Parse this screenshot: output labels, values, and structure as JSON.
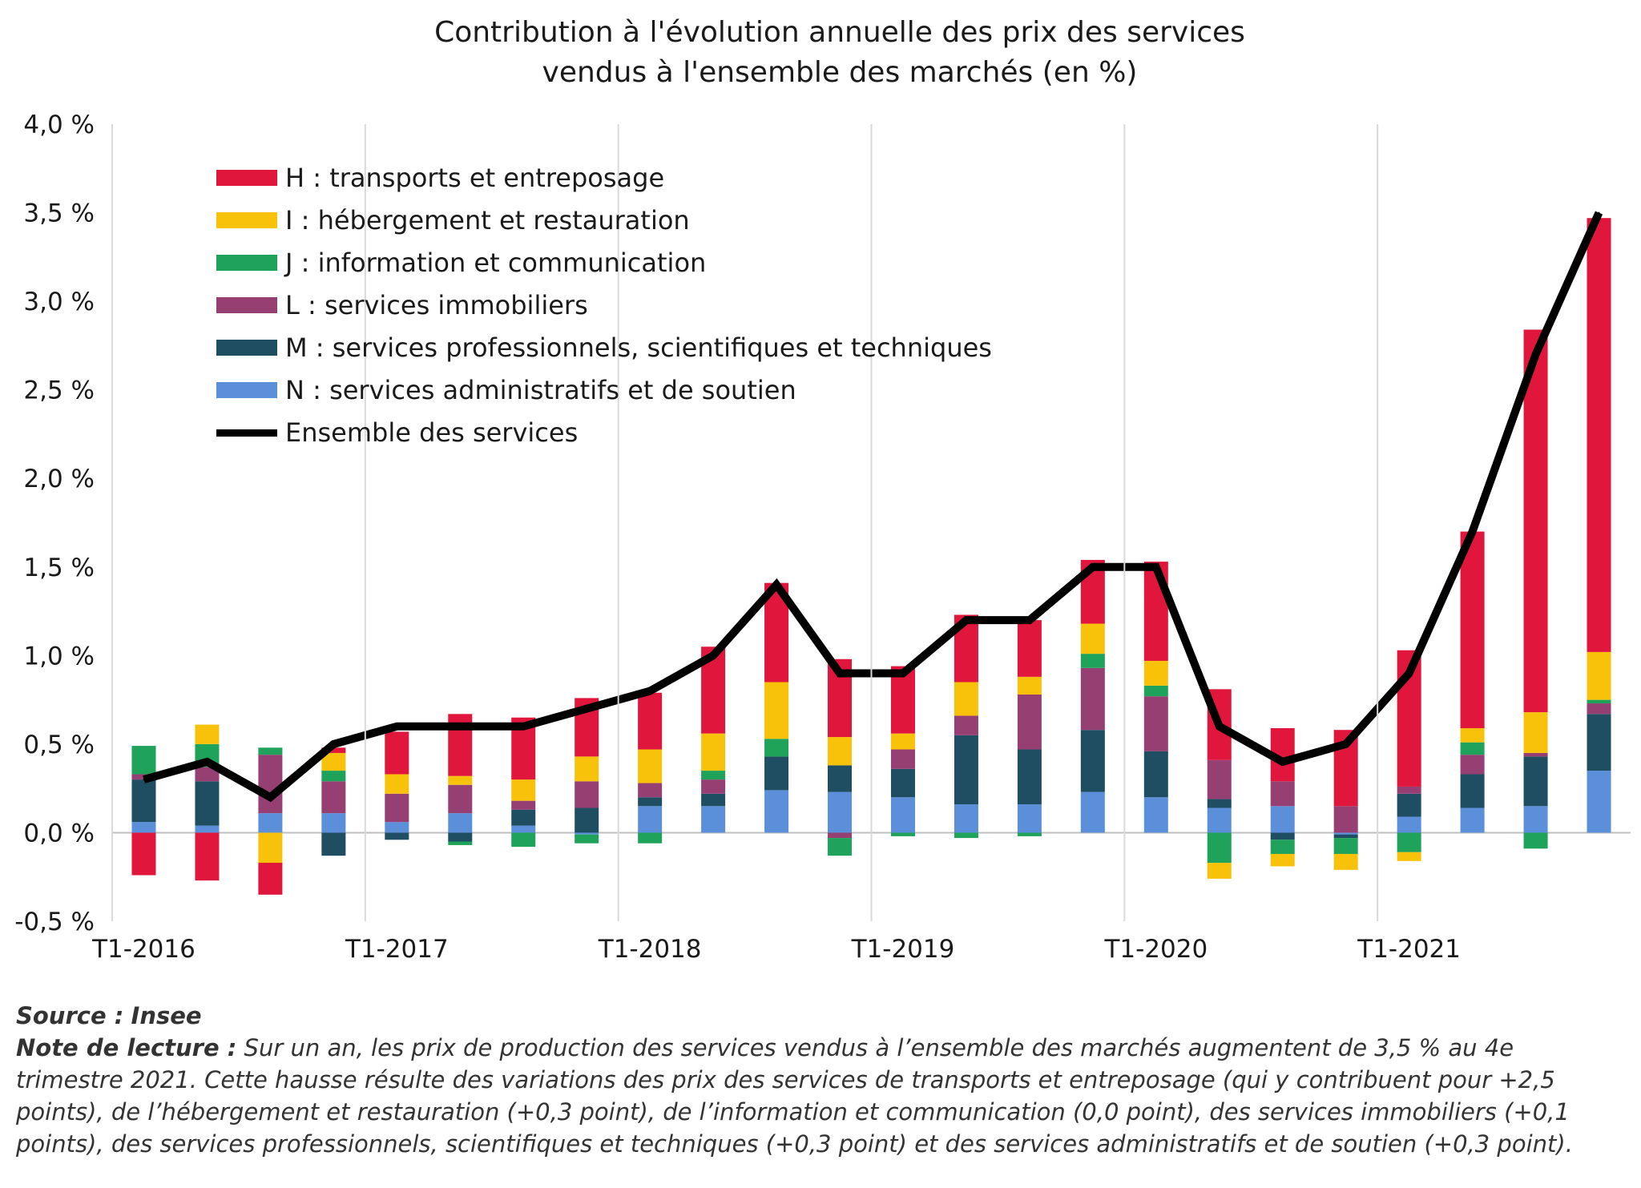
{
  "chart_data": {
    "type": "bar",
    "stacked": true,
    "title": "Contribution à l'évolution annuelle des prix des services\nvendus à l'ensemble des marchés (en %)",
    "title_lines": [
      "Contribution à l'évolution annuelle des prix des services",
      "vendus à l'ensemble des marchés (en %)"
    ],
    "ylim": [
      -0.5,
      4.0
    ],
    "yticks": [
      -0.5,
      0.0,
      0.5,
      1.0,
      1.5,
      2.0,
      2.5,
      3.0,
      3.5,
      4.0
    ],
    "ytick_labels": [
      "-0,5 %",
      "0,0 %",
      "0,5 %",
      "1,0 %",
      "1,5 %",
      "2,0 %",
      "2,5 %",
      "3,0 %",
      "3,5 %",
      "4,0 %"
    ],
    "categories": [
      "T1-2016",
      "T2-2016",
      "T3-2016",
      "T4-2016",
      "T1-2017",
      "T2-2017",
      "T3-2017",
      "T4-2017",
      "T1-2018",
      "T2-2018",
      "T3-2018",
      "T4-2018",
      "T1-2019",
      "T2-2019",
      "T3-2019",
      "T4-2019",
      "T1-2020",
      "T2-2020",
      "T3-2020",
      "T4-2020",
      "T1-2021",
      "T2-2021",
      "T3-2021",
      "T4-2021"
    ],
    "xtick_labels": [
      {
        "index": 0,
        "label": "T1-2016"
      },
      {
        "index": 4,
        "label": "T1-2017"
      },
      {
        "index": 8,
        "label": "T1-2018"
      },
      {
        "index": 12,
        "label": "T1-2019"
      },
      {
        "index": 16,
        "label": "T1-2020"
      },
      {
        "index": 20,
        "label": "T1-2021"
      }
    ],
    "legend_position": "top-left",
    "series": [
      {
        "key": "N",
        "name": "N : services administratifs et de soutien",
        "color": "#5b8fd9",
        "values": [
          0.06,
          0.04,
          0.11,
          0.11,
          0.06,
          0.11,
          0.04,
          -0.01,
          0.15,
          0.15,
          0.24,
          0.23,
          0.2,
          0.16,
          0.16,
          0.23,
          0.2,
          0.14,
          0.15,
          -0.01,
          0.09,
          0.14,
          0.15,
          0.35
        ]
      },
      {
        "key": "M",
        "name": "M : services professionnels, scientifiques et techniques",
        "color": "#1f4e63",
        "values": [
          0.24,
          0.25,
          0.0,
          -0.13,
          -0.04,
          -0.05,
          0.09,
          0.14,
          0.05,
          0.07,
          0.19,
          0.15,
          0.16,
          0.39,
          0.31,
          0.35,
          0.26,
          0.05,
          -0.04,
          -0.02,
          0.13,
          0.19,
          0.28,
          0.32
        ]
      },
      {
        "key": "L",
        "name": "L : services immobiliers",
        "color": "#963f73",
        "values": [
          0.03,
          0.08,
          0.33,
          0.18,
          0.16,
          0.16,
          0.05,
          0.15,
          0.08,
          0.08,
          0.0,
          -0.03,
          0.11,
          0.11,
          0.31,
          0.35,
          0.31,
          0.22,
          0.14,
          0.15,
          0.04,
          0.11,
          0.02,
          0.06
        ]
      },
      {
        "key": "J",
        "name": "J : information et communication",
        "color": "#1fa25a",
        "values": [
          0.16,
          0.13,
          0.04,
          0.06,
          0.0,
          -0.02,
          -0.08,
          -0.05,
          -0.06,
          0.05,
          0.1,
          -0.1,
          -0.02,
          -0.03,
          -0.02,
          0.08,
          0.06,
          -0.17,
          -0.08,
          -0.09,
          -0.11,
          0.07,
          -0.09,
          0.02
        ]
      },
      {
        "key": "I",
        "name": "I : hébergement et restauration",
        "color": "#f9c20a",
        "values": [
          0.0,
          0.11,
          -0.17,
          0.1,
          0.11,
          0.05,
          0.12,
          0.14,
          0.19,
          0.21,
          0.32,
          0.16,
          0.09,
          0.19,
          0.1,
          0.17,
          0.14,
          -0.09,
          -0.07,
          -0.09,
          -0.05,
          0.08,
          0.23,
          0.27
        ]
      },
      {
        "key": "H",
        "name": "H : transports et entreposage",
        "color": "#e1163c",
        "values": [
          -0.24,
          -0.27,
          -0.18,
          0.03,
          0.24,
          0.35,
          0.35,
          0.33,
          0.32,
          0.49,
          0.56,
          0.44,
          0.38,
          0.38,
          0.32,
          0.36,
          0.56,
          0.4,
          0.3,
          0.43,
          0.77,
          1.11,
          2.16,
          2.45
        ]
      }
    ],
    "line": {
      "name": "Ensemble des services",
      "color": "#000000",
      "values": [
        0.3,
        0.4,
        0.2,
        0.5,
        0.6,
        0.6,
        0.6,
        0.7,
        0.8,
        1.0,
        1.4,
        0.9,
        0.9,
        1.2,
        1.2,
        1.5,
        1.5,
        0.6,
        0.4,
        0.5,
        0.9,
        1.7,
        2.7,
        3.5
      ]
    },
    "legend_order": [
      "H",
      "I",
      "J",
      "L",
      "M",
      "N",
      "line"
    ]
  },
  "source": {
    "label": "Source :",
    "value": "Insee"
  },
  "note": {
    "label": "Note de lecture :",
    "text": "Sur un an, les prix de production des services vendus à l’ensemble des marchés augmentent de 3,5 % au 4e trimestre 2021. Cette hausse résulte des variations des prix des services de transports et entreposage (qui y contribuent pour +2,5 points), de l’hébergement et restauration (+0,3 point), de l’information et communication (0,0 point), des services immobiliers (+0,1 points), des services professionnels, scientifiques et techniques (+0,3 point) et des services administratifs et de soutien (+0,3 point)."
  }
}
